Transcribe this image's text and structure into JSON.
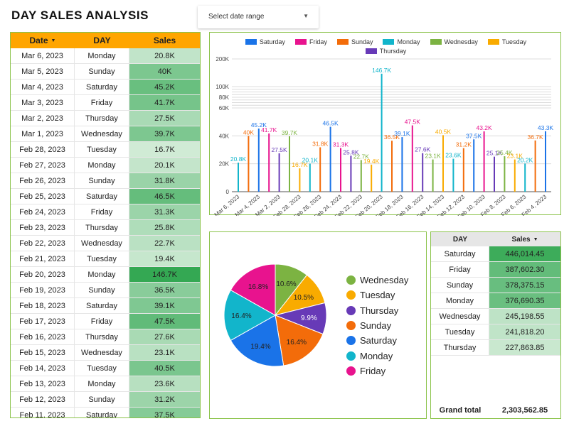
{
  "title": "DAY SALES ANALYSIS",
  "date_range": {
    "label": "Select date range"
  },
  "left_table": {
    "headers": {
      "date": "Date",
      "day": "DAY",
      "sales": "Sales"
    },
    "rows": [
      {
        "date": "Mar 6, 2023",
        "day": "Monday",
        "sales": "20.8K"
      },
      {
        "date": "Mar 5, 2023",
        "day": "Sunday",
        "sales": "40K"
      },
      {
        "date": "Mar 4, 2023",
        "day": "Saturday",
        "sales": "45.2K"
      },
      {
        "date": "Mar 3, 2023",
        "day": "Friday",
        "sales": "41.7K"
      },
      {
        "date": "Mar 2, 2023",
        "day": "Thursday",
        "sales": "27.5K"
      },
      {
        "date": "Mar 1, 2023",
        "day": "Wednesday",
        "sales": "39.7K"
      },
      {
        "date": "Feb 28, 2023",
        "day": "Tuesday",
        "sales": "16.7K"
      },
      {
        "date": "Feb 27, 2023",
        "day": "Monday",
        "sales": "20.1K"
      },
      {
        "date": "Feb 26, 2023",
        "day": "Sunday",
        "sales": "31.8K"
      },
      {
        "date": "Feb 25, 2023",
        "day": "Saturday",
        "sales": "46.5K"
      },
      {
        "date": "Feb 24, 2023",
        "day": "Friday",
        "sales": "31.3K"
      },
      {
        "date": "Feb 23, 2023",
        "day": "Thursday",
        "sales": "25.8K"
      },
      {
        "date": "Feb 22, 2023",
        "day": "Wednesday",
        "sales": "22.7K"
      },
      {
        "date": "Feb 21, 2023",
        "day": "Tuesday",
        "sales": "19.4K"
      },
      {
        "date": "Feb 20, 2023",
        "day": "Monday",
        "sales": "146.7K"
      },
      {
        "date": "Feb 19, 2023",
        "day": "Sunday",
        "sales": "36.5K"
      },
      {
        "date": "Feb 18, 2023",
        "day": "Saturday",
        "sales": "39.1K"
      },
      {
        "date": "Feb 17, 2023",
        "day": "Friday",
        "sales": "47.5K"
      },
      {
        "date": "Feb 16, 2023",
        "day": "Thursday",
        "sales": "27.6K"
      },
      {
        "date": "Feb 15, 2023",
        "day": "Wednesday",
        "sales": "23.1K"
      },
      {
        "date": "Feb 14, 2023",
        "day": "Tuesday",
        "sales": "40.5K"
      },
      {
        "date": "Feb 13, 2023",
        "day": "Monday",
        "sales": "23.6K"
      },
      {
        "date": "Feb 12, 2023",
        "day": "Sunday",
        "sales": "31.2K"
      },
      {
        "date": "Feb 11, 2023",
        "day": "Saturday",
        "sales": "37.5K"
      }
    ]
  },
  "right_table": {
    "headers": {
      "day": "DAY",
      "sales": "Sales"
    },
    "rows": [
      {
        "day": "Saturday",
        "sales": "446,014.45",
        "value": 446014.45
      },
      {
        "day": "Friday",
        "sales": "387,602.30",
        "value": 387602.3
      },
      {
        "day": "Sunday",
        "sales": "378,375.15",
        "value": 378375.15
      },
      {
        "day": "Monday",
        "sales": "376,690.35",
        "value": 376690.35
      },
      {
        "day": "Wednesday",
        "sales": "245,198.55",
        "value": 245198.55
      },
      {
        "day": "Tuesday",
        "sales": "241,818.20",
        "value": 241818.2
      },
      {
        "day": "Thursday",
        "sales": "227,863.85",
        "value": 227863.85
      }
    ],
    "total_label": "Grand total",
    "total_value": "2,303,562.85"
  },
  "colors": {
    "Saturday": "#1a73e8",
    "Friday": "#e8138e",
    "Sunday": "#f36c0a",
    "Monday": "#12b5cb",
    "Wednesday": "#7cb342",
    "Tuesday": "#f9ab00",
    "Thursday": "#673ab7",
    "header_orange": "#ffa500",
    "heat_green": "#34a853"
  },
  "chart_data": [
    {
      "type": "bar",
      "legend": [
        "Saturday",
        "Friday",
        "Sunday",
        "Monday",
        "Wednesday",
        "Tuesday",
        "Thursday"
      ],
      "yticks": [
        "0",
        "20K",
        "40K",
        "60K",
        "80K",
        "100K",
        "200K"
      ],
      "xticks": [
        "Mar 6, 2023",
        "Mar 4, 2023",
        "Mar 2, 2023",
        "Feb 28, 2023",
        "Feb 26, 2023",
        "Feb 24, 2023",
        "Feb 22, 2023",
        "Feb 20, 2023",
        "Feb 18, 2023",
        "Feb 16, 2023",
        "Feb 14, 2023",
        "Feb 12, 2023",
        "Feb 10, 2023",
        "Feb 8, 2023",
        "Feb 6, 2023",
        "Feb 4, 2023"
      ],
      "bars": [
        {
          "date": "Mar 6, 2023",
          "day": "Monday",
          "value": 20.8,
          "label": "20.8K"
        },
        {
          "date": "Mar 5, 2023",
          "day": "Sunday",
          "value": 40.0,
          "label": "40K"
        },
        {
          "date": "Mar 4, 2023",
          "day": "Saturday",
          "value": 45.2,
          "label": "45.2K"
        },
        {
          "date": "Mar 3, 2023",
          "day": "Friday",
          "value": 41.7,
          "label": "41.7K"
        },
        {
          "date": "Mar 2, 2023",
          "day": "Thursday",
          "value": 27.5,
          "label": "27.5K"
        },
        {
          "date": "Mar 1, 2023",
          "day": "Wednesday",
          "value": 39.7,
          "label": "39.7K"
        },
        {
          "date": "Feb 28, 2023",
          "day": "Tuesday",
          "value": 16.7,
          "label": "16.7K"
        },
        {
          "date": "Feb 27, 2023",
          "day": "Monday",
          "value": 20.1,
          "label": "20.1K"
        },
        {
          "date": "Feb 26, 2023",
          "day": "Sunday",
          "value": 31.8,
          "label": "31.8K"
        },
        {
          "date": "Feb 25, 2023",
          "day": "Saturday",
          "value": 46.5,
          "label": "46.5K"
        },
        {
          "date": "Feb 24, 2023",
          "day": "Friday",
          "value": 31.3,
          "label": "31.3K"
        },
        {
          "date": "Feb 23, 2023",
          "day": "Thursday",
          "value": 25.8,
          "label": "25.8K"
        },
        {
          "date": "Feb 22, 2023",
          "day": "Wednesday",
          "value": 22.7,
          "label": "22.7K"
        },
        {
          "date": "Feb 21, 2023",
          "day": "Tuesday",
          "value": 19.4,
          "label": "19.4K"
        },
        {
          "date": "Feb 20, 2023",
          "day": "Monday",
          "value": 146.7,
          "label": "146.7K"
        },
        {
          "date": "Feb 19, 2023",
          "day": "Sunday",
          "value": 36.5,
          "label": "36.5K"
        },
        {
          "date": "Feb 18, 2023",
          "day": "Saturday",
          "value": 39.1,
          "label": "39.1K"
        },
        {
          "date": "Feb 17, 2023",
          "day": "Friday",
          "value": 47.5,
          "label": "47.5K"
        },
        {
          "date": "Feb 16, 2023",
          "day": "Thursday",
          "value": 27.6,
          "label": "27.6K"
        },
        {
          "date": "Feb 15, 2023",
          "day": "Wednesday",
          "value": 23.1,
          "label": "23.1K"
        },
        {
          "date": "Feb 14, 2023",
          "day": "Tuesday",
          "value": 40.5,
          "label": "40.5K"
        },
        {
          "date": "Feb 13, 2023",
          "day": "Monday",
          "value": 23.6,
          "label": "23.6K"
        },
        {
          "date": "Feb 12, 2023",
          "day": "Sunday",
          "value": 31.2,
          "label": "31.2K"
        },
        {
          "date": "Feb 11, 2023",
          "day": "Saturday",
          "value": 37.5,
          "label": "37.5K"
        },
        {
          "date": "Feb 10, 2023",
          "day": "Friday",
          "value": 43.2,
          "label": "43.2K"
        },
        {
          "date": "Feb 9, 2023",
          "day": "Thursday",
          "value": 25.1,
          "label": "25.1K"
        },
        {
          "date": "Feb 8, 2023",
          "day": "Wednesday",
          "value": 25.4,
          "label": "25.4K"
        },
        {
          "date": "Feb 7, 2023",
          "day": "Tuesday",
          "value": 23.1,
          "label": "23.1K"
        },
        {
          "date": "Feb 6, 2023",
          "day": "Monday",
          "value": 20.2,
          "label": "20.2K"
        },
        {
          "date": "Feb 5, 2023",
          "day": "Sunday",
          "value": 36.7,
          "label": "36.7K"
        },
        {
          "date": "Feb 4, 2023",
          "day": "Saturday",
          "value": 43.3,
          "label": "43.3K"
        }
      ]
    },
    {
      "type": "pie",
      "slices": [
        {
          "name": "Wednesday",
          "percent": 10.6,
          "label": "10.6%"
        },
        {
          "name": "Tuesday",
          "percent": 10.5,
          "label": "10.5%"
        },
        {
          "name": "Thursday",
          "percent": 9.9,
          "label": "9.9%"
        },
        {
          "name": "Sunday",
          "percent": 16.4,
          "label": "16.4%"
        },
        {
          "name": "Saturday",
          "percent": 19.4,
          "label": "19.4%"
        },
        {
          "name": "Monday",
          "percent": 16.4,
          "label": "16.4%"
        },
        {
          "name": "Friday",
          "percent": 16.8,
          "label": "16.8%"
        }
      ],
      "legend": [
        "Wednesday",
        "Tuesday",
        "Thursday",
        "Sunday",
        "Saturday",
        "Monday",
        "Friday"
      ]
    }
  ]
}
